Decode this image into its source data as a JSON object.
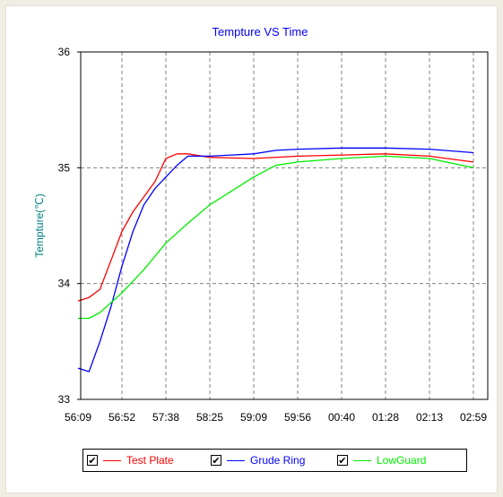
{
  "chart_data": {
    "type": "line",
    "title": "Tempture VS Time",
    "ylabel": "Tempture(℃)",
    "xlabel": "",
    "ylim": [
      33,
      36
    ],
    "yticks": [
      "33",
      "34",
      "35",
      "36"
    ],
    "categories": [
      "56:09",
      "56:52",
      "57:38",
      "58:25",
      "59:09",
      "59:56",
      "00:40",
      "01:28",
      "02:13",
      "02:59"
    ],
    "grid": true,
    "legend_position": "bottom",
    "series": [
      {
        "name": "Test Plate",
        "color": "#ff0000",
        "points": [
          [
            0,
            33.85
          ],
          [
            0.25,
            33.88
          ],
          [
            0.5,
            33.95
          ],
          [
            0.75,
            34.2
          ],
          [
            1,
            34.45
          ],
          [
            1.25,
            34.62
          ],
          [
            1.5,
            34.75
          ],
          [
            1.75,
            34.88
          ],
          [
            2,
            35.08
          ],
          [
            2.25,
            35.12
          ],
          [
            2.5,
            35.12
          ],
          [
            3,
            35.09
          ],
          [
            4,
            35.08
          ],
          [
            5,
            35.1
          ],
          [
            6,
            35.11
          ],
          [
            7,
            35.12
          ],
          [
            8,
            35.1
          ],
          [
            9,
            35.05
          ]
        ]
      },
      {
        "name": "Grude Ring",
        "color": "#0000ff",
        "points": [
          [
            0,
            33.27
          ],
          [
            0.25,
            33.24
          ],
          [
            0.5,
            33.5
          ],
          [
            0.75,
            33.8
          ],
          [
            1,
            34.15
          ],
          [
            1.25,
            34.45
          ],
          [
            1.5,
            34.68
          ],
          [
            1.75,
            34.82
          ],
          [
            2,
            34.92
          ],
          [
            2.25,
            35.02
          ],
          [
            2.5,
            35.1
          ],
          [
            3,
            35.1
          ],
          [
            4,
            35.12
          ],
          [
            4.5,
            35.15
          ],
          [
            5,
            35.16
          ],
          [
            6,
            35.17
          ],
          [
            7,
            35.17
          ],
          [
            8,
            35.16
          ],
          [
            9,
            35.13
          ]
        ]
      },
      {
        "name": "LowGuard",
        "color": "#00ee00",
        "points": [
          [
            0,
            33.7
          ],
          [
            0.25,
            33.7
          ],
          [
            0.5,
            33.75
          ],
          [
            1,
            33.92
          ],
          [
            1.5,
            34.12
          ],
          [
            2,
            34.35
          ],
          [
            2.5,
            34.52
          ],
          [
            3,
            34.68
          ],
          [
            3.5,
            34.8
          ],
          [
            4,
            34.92
          ],
          [
            4.5,
            35.02
          ],
          [
            5,
            35.05
          ],
          [
            6,
            35.08
          ],
          [
            7,
            35.1
          ],
          [
            8,
            35.08
          ],
          [
            9,
            35.0
          ]
        ]
      }
    ]
  },
  "legend": {
    "items": [
      {
        "label": "Test Plate",
        "color": "#ff0000",
        "checked": "✔"
      },
      {
        "label": "Grude Ring",
        "color": "#0000ff",
        "checked": "✔"
      },
      {
        "label": "LowGuard",
        "color": "#00ee00",
        "checked": "✔"
      }
    ]
  }
}
